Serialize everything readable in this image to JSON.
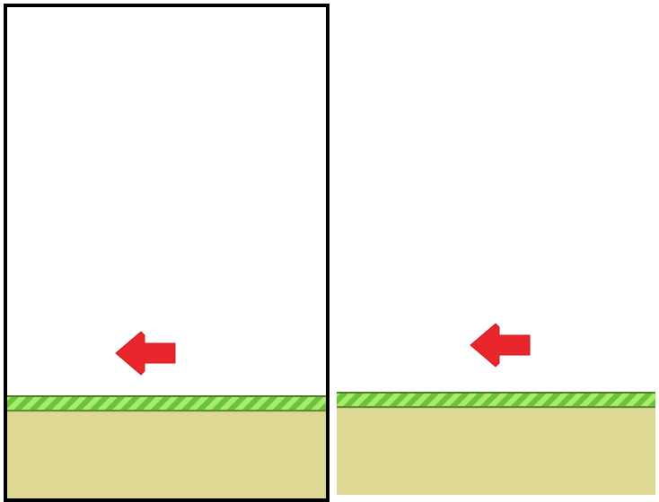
{
  "scene": {
    "panels": [
      {
        "id": "panel-left",
        "selected": true,
        "arrow_direction": "left"
      },
      {
        "id": "panel-right",
        "selected": false,
        "arrow_direction": "left"
      }
    ]
  },
  "colors": {
    "sky": "#ffffff",
    "frame": "#000000",
    "grass_light": "#a8ec69",
    "grass_dark": "#6cc23a",
    "grass_edge": "#4a7f2a",
    "dirt": "#ddd894",
    "arrow": "#e8262b"
  },
  "icons": {
    "arrow": "arrow-left-icon",
    "ground": "grass-ground-strip"
  }
}
